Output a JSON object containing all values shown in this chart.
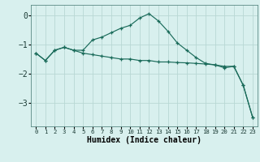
{
  "title": "",
  "xlabel": "Humidex (Indice chaleur)",
  "x_values": [
    0,
    1,
    2,
    3,
    4,
    5,
    6,
    7,
    8,
    9,
    10,
    11,
    12,
    13,
    14,
    15,
    16,
    17,
    18,
    19,
    20,
    21,
    22,
    23
  ],
  "line1_y": [
    -1.3,
    -1.55,
    -1.2,
    -1.1,
    -1.2,
    -1.2,
    -0.85,
    -0.75,
    -0.6,
    -0.45,
    -0.35,
    -0.1,
    0.05,
    -0.2,
    -0.55,
    -0.95,
    -1.2,
    -1.45,
    -1.65,
    -1.7,
    -1.8,
    -1.75,
    -2.4,
    -3.5
  ],
  "line2_y": [
    -1.3,
    -1.55,
    -1.2,
    -1.1,
    -1.2,
    -1.3,
    -1.35,
    -1.4,
    -1.45,
    -1.5,
    -1.5,
    -1.55,
    -1.55,
    -1.6,
    -1.6,
    -1.62,
    -1.63,
    -1.65,
    -1.67,
    -1.7,
    -1.75,
    -1.75,
    -2.4,
    -3.5
  ],
  "line_color": "#1a6b5a",
  "bg_color": "#d8f0ee",
  "grid_color": "#b8d8d4",
  "ylim": [
    -3.8,
    0.35
  ],
  "yticks": [
    0,
    -1,
    -2,
    -3
  ],
  "xlim": [
    -0.5,
    23.5
  ]
}
